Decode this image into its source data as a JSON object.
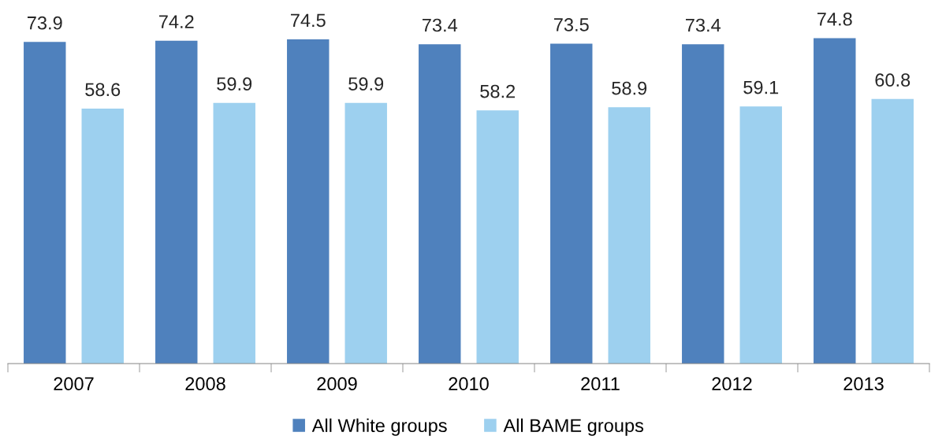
{
  "chart_data": {
    "type": "bar",
    "categories": [
      "2007",
      "2008",
      "2009",
      "2010",
      "2011",
      "2012",
      "2013"
    ],
    "series": [
      {
        "name": "All White groups",
        "color": "#4f81bd",
        "values": [
          73.9,
          74.2,
          74.5,
          73.4,
          73.5,
          73.4,
          74.8
        ]
      },
      {
        "name": "All BAME groups",
        "color": "#9dd0ef",
        "values": [
          58.6,
          59.9,
          59.9,
          58.2,
          58.9,
          59.1,
          60.8
        ]
      }
    ],
    "data_labels": true,
    "legend": "bottom",
    "grid": false,
    "tick_labels": "x"
  }
}
